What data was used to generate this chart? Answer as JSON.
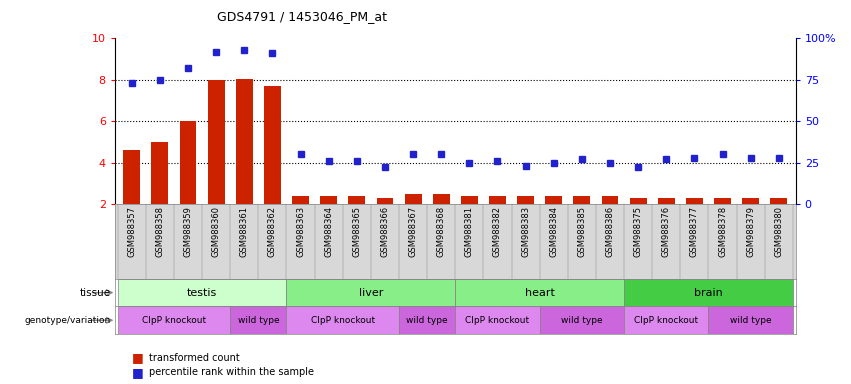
{
  "title": "GDS4791 / 1453046_PM_at",
  "samples": [
    "GSM988357",
    "GSM988358",
    "GSM988359",
    "GSM988360",
    "GSM988361",
    "GSM988362",
    "GSM988363",
    "GSM988364",
    "GSM988365",
    "GSM988366",
    "GSM988367",
    "GSM988368",
    "GSM988381",
    "GSM988382",
    "GSM988383",
    "GSM988384",
    "GSM988385",
    "GSM988386",
    "GSM988375",
    "GSM988376",
    "GSM988377",
    "GSM988378",
    "GSM988379",
    "GSM988380"
  ],
  "transformed_count": [
    4.6,
    5.0,
    6.0,
    8.0,
    8.05,
    7.7,
    2.4,
    2.4,
    2.4,
    2.3,
    2.5,
    2.5,
    2.4,
    2.4,
    2.4,
    2.4,
    2.4,
    2.4,
    2.3,
    2.3,
    2.3,
    2.3,
    2.3,
    2.3
  ],
  "percentile_rank": [
    73,
    75,
    82,
    92,
    93,
    91,
    30,
    26,
    26,
    22,
    30,
    30,
    25,
    26,
    23,
    25,
    27,
    25,
    22,
    27,
    28,
    30,
    28,
    28
  ],
  "tissue_groups": [
    {
      "name": "testis",
      "start": 0,
      "end": 5,
      "color": "#ccffcc"
    },
    {
      "name": "liver",
      "start": 6,
      "end": 11,
      "color": "#88ee88"
    },
    {
      "name": "heart",
      "start": 12,
      "end": 17,
      "color": "#88ee88"
    },
    {
      "name": "brain",
      "start": 18,
      "end": 23,
      "color": "#44cc44"
    }
  ],
  "geno_groups": [
    {
      "name": "ClpP knockout",
      "start": 0,
      "end": 3,
      "color": "#dd88ee"
    },
    {
      "name": "wild type",
      "start": 4,
      "end": 5,
      "color": "#cc66dd"
    },
    {
      "name": "ClpP knockout",
      "start": 6,
      "end": 9,
      "color": "#dd88ee"
    },
    {
      "name": "wild type",
      "start": 10,
      "end": 11,
      "color": "#cc66dd"
    },
    {
      "name": "ClpP knockout",
      "start": 12,
      "end": 14,
      "color": "#dd88ee"
    },
    {
      "name": "wild type",
      "start": 15,
      "end": 17,
      "color": "#cc66dd"
    },
    {
      "name": "ClpP knockout",
      "start": 18,
      "end": 20,
      "color": "#dd88ee"
    },
    {
      "name": "wild type",
      "start": 21,
      "end": 23,
      "color": "#cc66dd"
    }
  ],
  "bar_color": "#cc2200",
  "dot_color": "#2222cc",
  "ylim_left": [
    2,
    10
  ],
  "ylim_right": [
    0,
    100
  ],
  "yticks_left": [
    2,
    4,
    6,
    8,
    10
  ],
  "yticks_right": [
    0,
    25,
    50,
    75,
    100
  ],
  "grid_lines": [
    4,
    6,
    8
  ]
}
